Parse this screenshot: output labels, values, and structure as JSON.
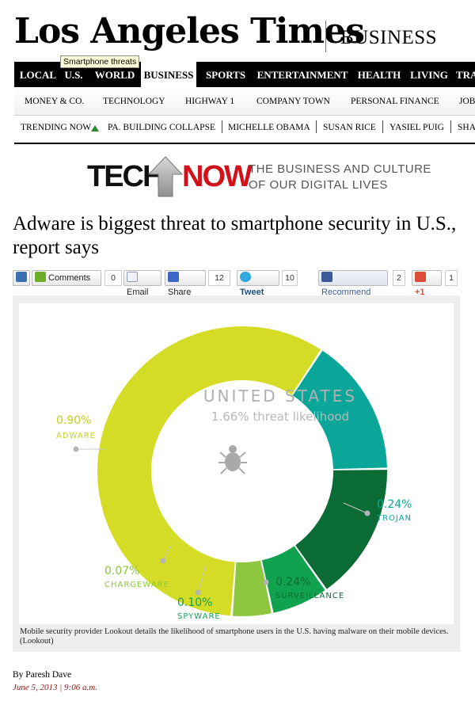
{
  "masthead": {
    "logo": "Los Angeles Times",
    "section": "BUSINESS"
  },
  "tooltip": "Smartphone threats",
  "main_nav": [
    "LOCAL",
    "U.S.",
    "WORLD",
    "BUSINESS",
    "SPORTS",
    "ENTERTAINMENT",
    "HEALTH",
    "LIVING",
    "TRA"
  ],
  "main_nav_active": "BUSINESS",
  "sub_nav": [
    "MONEY & CO.",
    "TECHNOLOGY",
    "HIGHWAY 1",
    "COMPANY TOWN",
    "PERSONAL FINANCE",
    "JOB"
  ],
  "trending": {
    "label": "TRENDING NOW",
    "items": [
      "PA. BUILDING COLLAPSE",
      "MICHELLE OBAMA",
      "SUSAN RICE",
      "YASIEL PUIG",
      "SHA"
    ]
  },
  "technow": {
    "tech": "TECH",
    "now": "NOW",
    "tagline1": "THE BUSINESS AND CULTURE",
    "tagline2": "OF OUR DIGITAL LIVES"
  },
  "headline": "Adware is biggest threat to smartphone security in U.S., report says",
  "share": {
    "comments_label": "Comments",
    "comments_count": "0",
    "email_label": "Email",
    "share_label": "Share",
    "share_count": "12",
    "tweet_label": "Tweet",
    "tweet_count": "10",
    "recommend_label": "Recommend",
    "recommend_count": "2",
    "gplus_label": "+1",
    "gplus_count": "1"
  },
  "colors": {
    "adware": "#d4dc25",
    "chargeware": "#8dc63f",
    "spyware": "#11a24f",
    "surveillance": "#0b6b35",
    "trojan": "#0aa69a",
    "tooltip_bg": "#ffffd8"
  },
  "chart_data": {
    "type": "pie",
    "title": "UNITED STATES",
    "subtitle": "1.66% threat likelihood",
    "series": [
      {
        "label": "ADWARE",
        "value": "0.90%",
        "pct": 0.9,
        "color": "#d4dc25"
      },
      {
        "label": "CHARGEWARE",
        "value": "0.07%",
        "pct": 0.07,
        "color": "#8dc63f"
      },
      {
        "label": "SPYWARE",
        "value": "0.10%",
        "pct": 0.1,
        "color": "#11a24f"
      },
      {
        "label": "SURVEILLANCE",
        "value": "0.24%",
        "pct": 0.24,
        "color": "#0b6b35"
      },
      {
        "label": "TROJAN",
        "value": "0.24%",
        "pct": 0.24,
        "color": "#0aa69a"
      }
    ]
  },
  "caption": "Mobile security provider Lookout details the likelihood of smartphone users in the U.S. having malware on their mobile devices. (Lookout)",
  "byline": "By Paresh Dave",
  "date": "June 5, 2013",
  "time": "9:06 a.m."
}
